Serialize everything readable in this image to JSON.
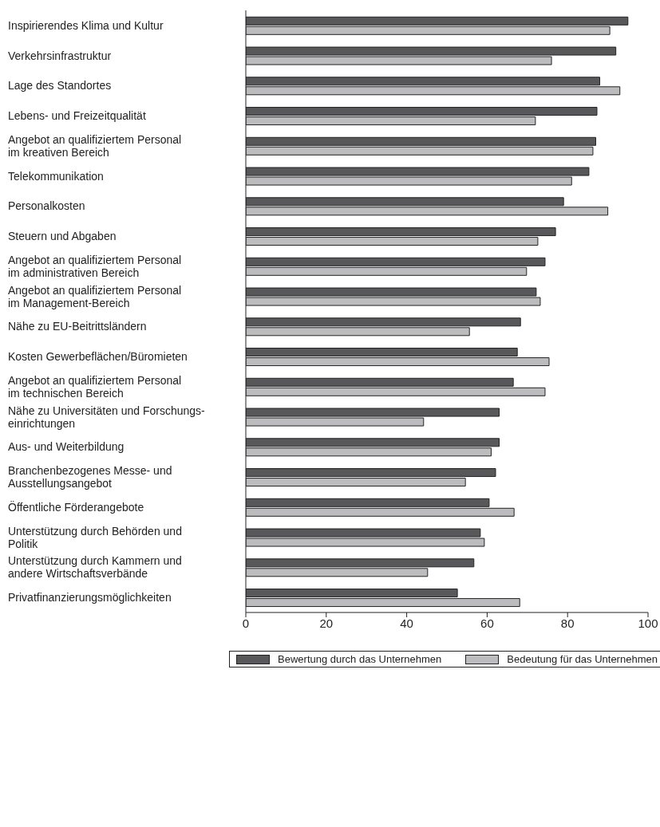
{
  "chart_data": {
    "type": "bar",
    "orientation": "horizontal",
    "categories": [
      "Inspirierendes Klima und Kultur",
      "Verkehrsinfrastruktur",
      "Lage des Standortes",
      "Lebens- und Freizeitqualität",
      "Angebot an qualifiziertem Personal\nim kreativen Bereich",
      "Telekommunikation",
      "Personalkosten",
      "Steuern und Abgaben",
      "Angebot an qualifiziertem Personal\nim administrativen Bereich",
      "Angebot an qualifiziertem Personal\nim Management-Bereich",
      "Nähe zu EU-Beitrittsländern",
      "Kosten Gewerbeflächen/Büromieten",
      "Angebot an qualifiziertem Personal\nim technischen Bereich",
      "Nähe zu Universitäten und Forschungs-\neinrichtungen",
      "Aus- und Weiterbildung",
      "Branchenbezogenes Messe- und\nAusstellungsangebot",
      "Öffentliche Förderangebote",
      "Unterstützung durch Behörden und\nPolitik",
      "Unterstützung durch Kammern und\nandere Wirtschaftsverbände",
      "Privatfinanzierungsmöglichkeiten"
    ],
    "series": [
      {
        "name": "Bewertung durch das Unternehmen",
        "color": "#58585a",
        "values": [
          95,
          92,
          88,
          87.3,
          87,
          85.3,
          79,
          77,
          74.4,
          72.2,
          68.3,
          67.5,
          66.5,
          63,
          63,
          62.1,
          60.5,
          58.3,
          56.7,
          52.6
        ]
      },
      {
        "name": "Bedeutung für das Unternehmen",
        "color": "#bcbcbe",
        "values": [
          90.5,
          76,
          93,
          72,
          86.3,
          81,
          90,
          72.6,
          69.8,
          73.2,
          55.6,
          75.4,
          74.4,
          44.2,
          61,
          54.6,
          66.7,
          59.3,
          45.2,
          68.1
        ]
      }
    ],
    "xlim": [
      0,
      100
    ],
    "xticks": [
      0,
      20,
      40,
      60,
      80,
      100
    ],
    "legend": "bottom"
  }
}
